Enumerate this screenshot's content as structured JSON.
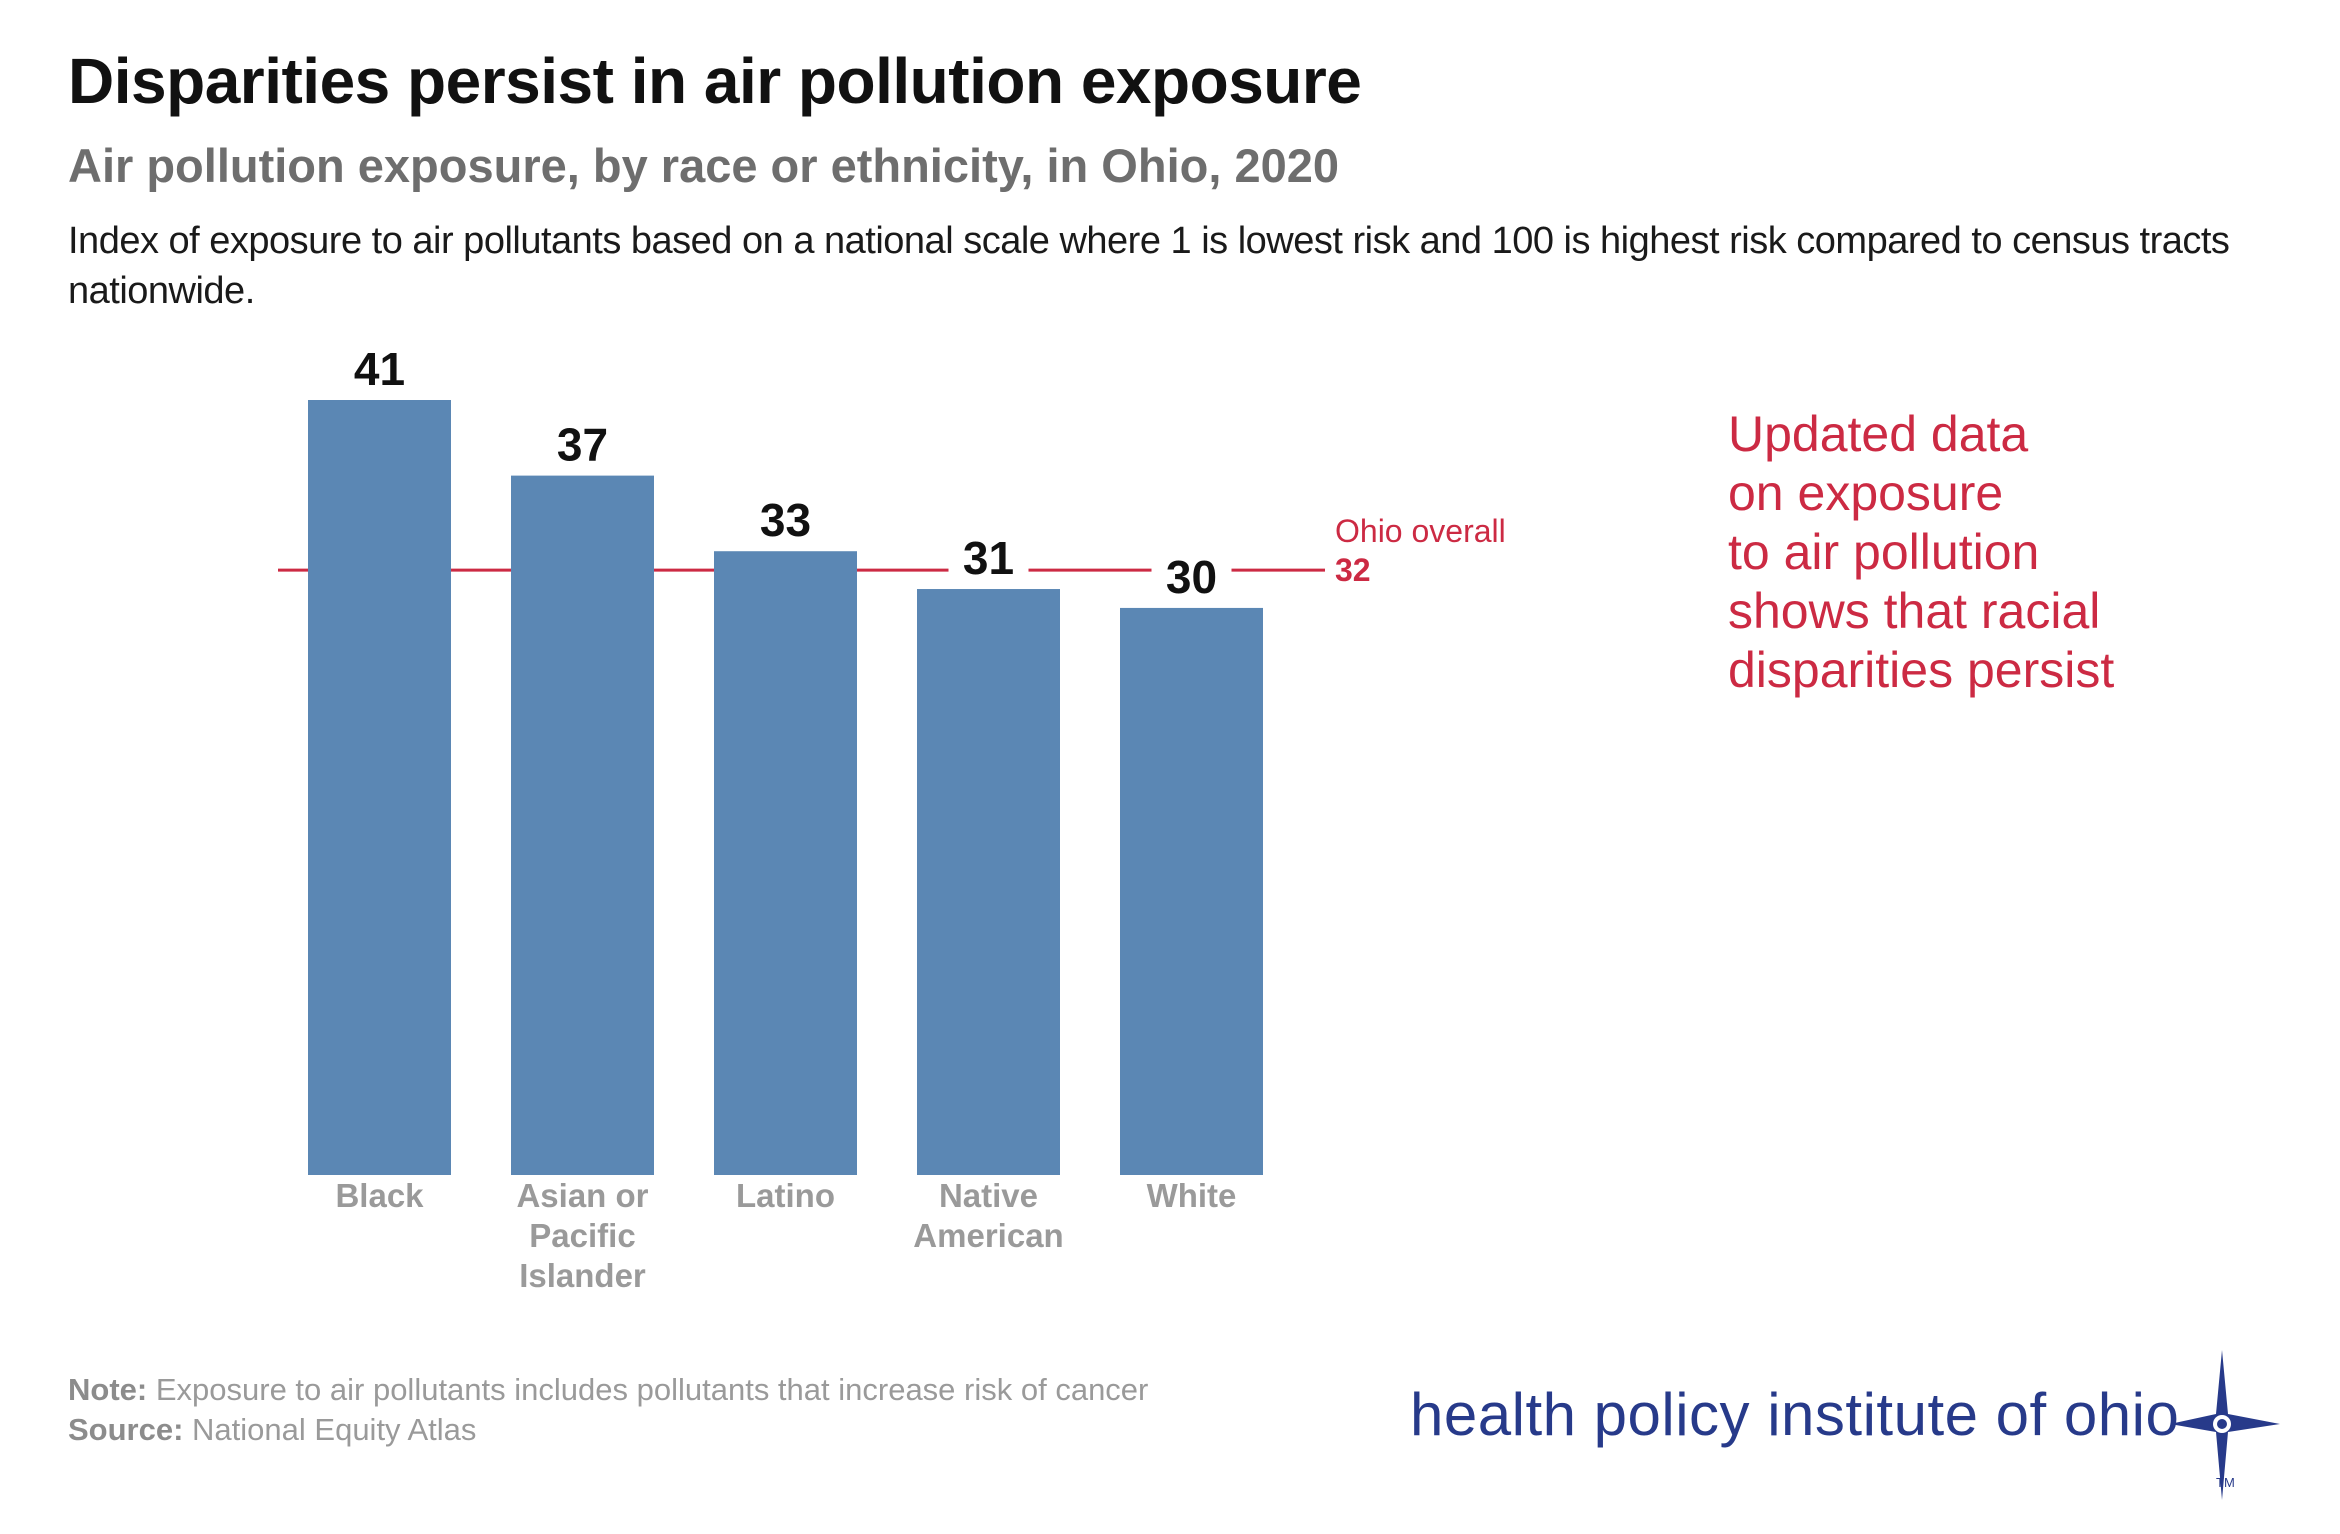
{
  "title": "Disparities persist in air pollution exposure",
  "subtitle": "Air pollution exposure, by race or ethnicity, in Ohio, 2020",
  "description": "Index of exposure to air pollutants based on a national scale where 1 is lowest risk and 100 is highest risk compared to census tracts nationwide.",
  "callout": {
    "lines": [
      "Updated data",
      "on exposure",
      "to air pollution",
      "shows that racial",
      "disparities persist"
    ]
  },
  "footnotes": {
    "note_label": "Note:",
    "note_text": "Exposure to air pollutants includes pollutants that increase risk of cancer",
    "source_label": "Source:",
    "source_text": "National Equity Atlas"
  },
  "logo": {
    "text": "health policy institute of ohio",
    "tm": "TM"
  },
  "colors": {
    "bar": "#5b87b4",
    "reference_line": "#cc2a43",
    "category_label": "#9a9a9a",
    "value_label": "#111111"
  },
  "chart_data": {
    "type": "bar",
    "categories": [
      [
        "Black"
      ],
      [
        "Asian or",
        "Pacific",
        "Islander"
      ],
      [
        "Latino"
      ],
      [
        "Native",
        "American"
      ],
      [
        "White"
      ]
    ],
    "values": [
      41,
      37,
      33,
      31,
      30
    ],
    "value_labels": [
      "41",
      "37",
      "33",
      "31",
      "30"
    ],
    "reference": {
      "label": "Ohio overall",
      "value": 32,
      "value_label": "32"
    },
    "ylim": [
      0,
      41
    ],
    "grid": false,
    "legend": "none"
  }
}
